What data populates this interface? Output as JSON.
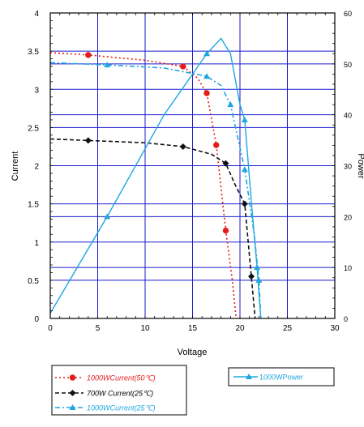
{
  "chart_data": {
    "type": "line",
    "xlabel": "Voltage",
    "ylabel": "Current",
    "y2label": "Power",
    "xlim": [
      0,
      30
    ],
    "ylim": [
      0,
      4
    ],
    "y2lim": [
      0,
      60
    ],
    "x_ticks": [
      "0",
      "5",
      "10",
      "15",
      "20",
      "25",
      "30"
    ],
    "y_ticks": [
      "0",
      "0.5",
      "1",
      "1.5",
      "2",
      "2.5",
      "3",
      "3.5",
      "4"
    ],
    "y2_ticks": [
      "0",
      "10",
      "20",
      "30",
      "40",
      "50",
      "60"
    ],
    "grid": true,
    "colors": {
      "red": "#e41c1c",
      "black": "#111111",
      "cyan": "#1fa6e0",
      "grid": "#1a1ad0",
      "frame": "#000000"
    },
    "series": [
      {
        "name": "1000WCurrent(50℃)",
        "axis": "left",
        "color": "#e41c1c",
        "style": "dotted",
        "marker": "circle",
        "x": [
          0,
          4,
          10,
          14,
          15.5,
          16.5,
          17.5,
          18.5,
          19.2,
          19.6
        ],
        "y": [
          3.48,
          3.45,
          3.38,
          3.3,
          3.15,
          2.95,
          2.27,
          1.15,
          0.5,
          0
        ],
        "marker_idx": [
          1,
          3,
          5,
          6,
          7
        ]
      },
      {
        "name": "700W   Current(25℃)",
        "axis": "left",
        "color": "#111111",
        "style": "dashed",
        "marker": "diamond",
        "x": [
          0,
          4,
          10,
          14,
          17,
          18.5,
          19.5,
          20.5,
          21.2,
          21.6
        ],
        "y": [
          2.35,
          2.33,
          2.3,
          2.25,
          2.15,
          2.03,
          1.75,
          1.5,
          0.55,
          0
        ],
        "marker_idx": [
          1,
          3,
          5,
          7,
          8
        ]
      },
      {
        "name": "1000WCurrent(25℃)",
        "axis": "left",
        "color": "#1fa6e0",
        "style": "dashdot",
        "marker": "triangle",
        "x": [
          0,
          6,
          12,
          16.5,
          18,
          19,
          20.5,
          21.5,
          22,
          22.2
        ],
        "y": [
          3.35,
          3.32,
          3.28,
          3.17,
          3.05,
          2.8,
          1.95,
          1.1,
          0.5,
          0
        ],
        "marker_idx": [
          1,
          3,
          5,
          6,
          8
        ]
      },
      {
        "name": "1000WPower",
        "axis": "right",
        "color": "#1fa6e0",
        "style": "solid",
        "marker": "triangle",
        "x": [
          0,
          6,
          12,
          16.5,
          18,
          19,
          20,
          20.5,
          21.2,
          21.8,
          22.2
        ],
        "y": [
          1,
          20,
          40,
          52,
          55,
          52,
          42,
          39,
          23,
          10,
          0
        ],
        "marker_idx": [
          1,
          3,
          7,
          9
        ]
      }
    ]
  }
}
